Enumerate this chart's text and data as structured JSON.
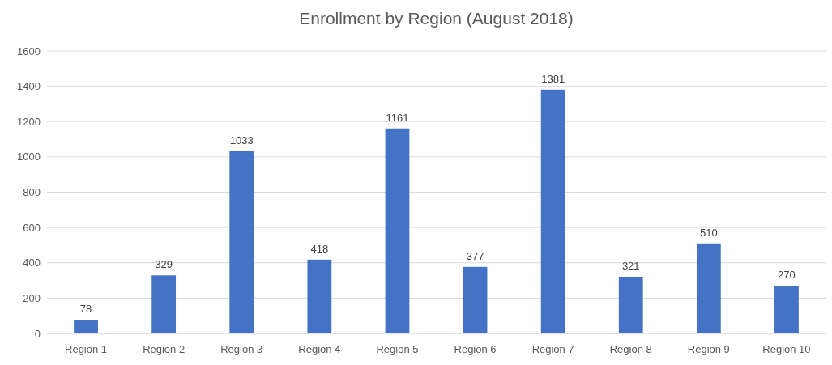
{
  "chart_data": {
    "type": "bar",
    "title": "Enrollment by Region (August 2018)",
    "categories": [
      "Region 1",
      "Region 2",
      "Region 3",
      "Region 4",
      "Region 5",
      "Region 6",
      "Region 7",
      "Region 8",
      "Region 9",
      "Region 10"
    ],
    "values": [
      78,
      329,
      1033,
      418,
      1161,
      377,
      1381,
      321,
      510,
      270
    ],
    "color": "#4472c4",
    "data_labels": true,
    "grid": "y",
    "ylim": [
      0,
      1600
    ],
    "yticks": [
      0,
      200,
      400,
      600,
      800,
      1000,
      1200,
      1400,
      1600
    ]
  }
}
